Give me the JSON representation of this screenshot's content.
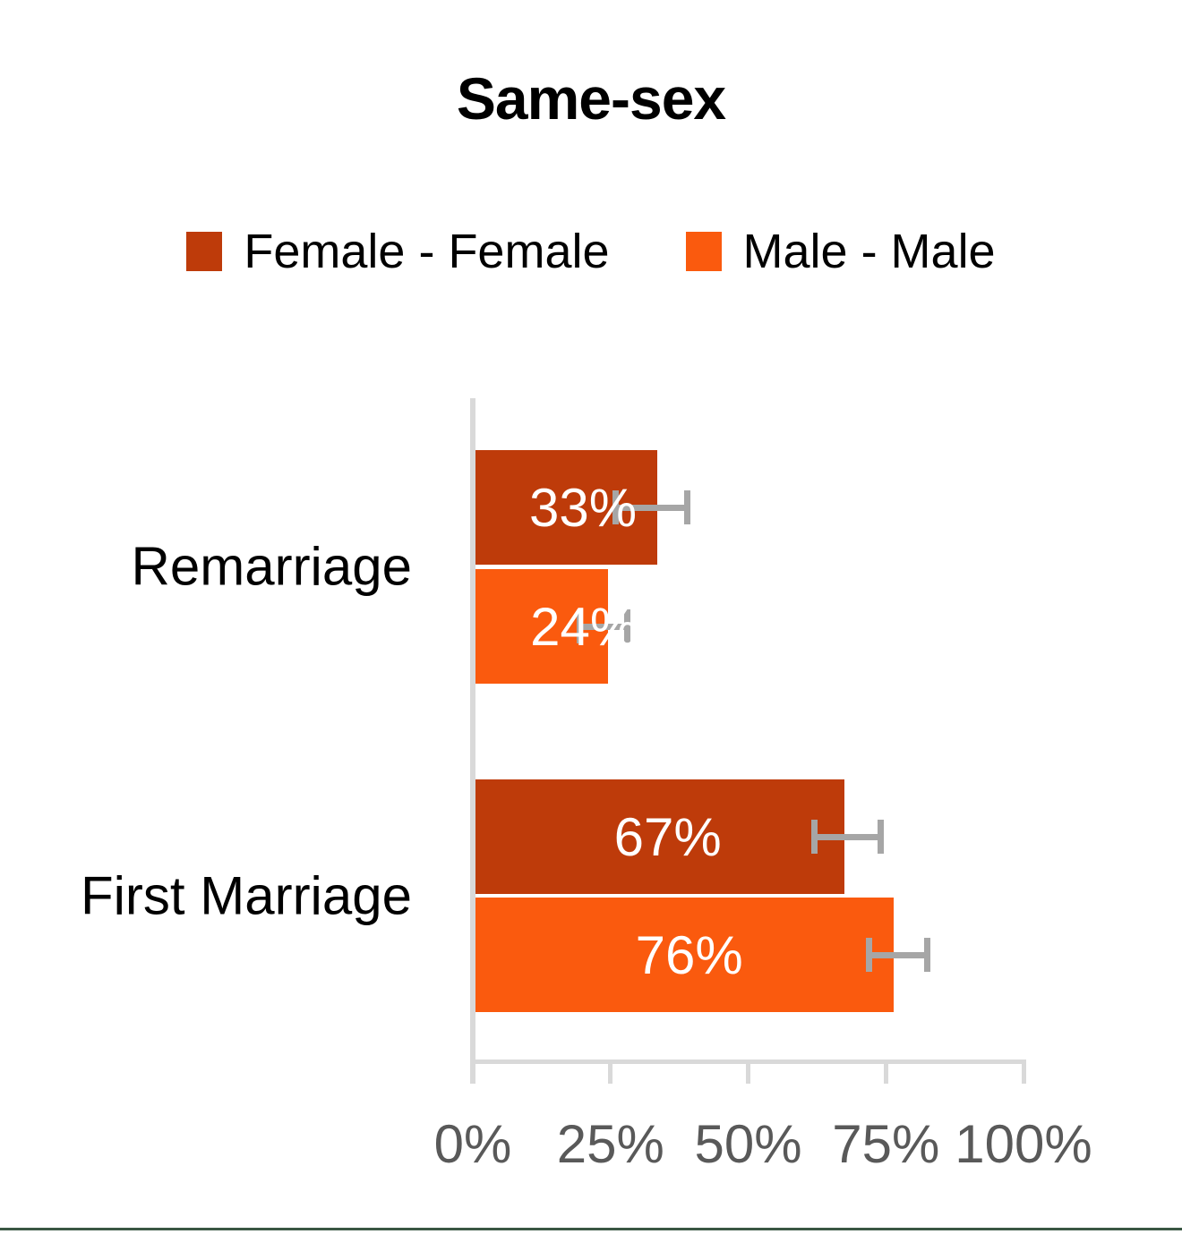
{
  "page": {
    "background": "#FFFFFF",
    "bottom_rule_color": "#3A5743"
  },
  "chart_data": {
    "type": "bar",
    "orientation": "horizontal",
    "title": "Same-sex",
    "title_color": "#000000",
    "categories": [
      "Remarriage",
      "First Marriage"
    ],
    "series": [
      {
        "name": "Female - Female",
        "color": "#BE3B0A",
        "values": [
          33,
          67
        ],
        "value_labels": [
          "33%",
          "67%"
        ],
        "errors": [
          {
            "low": 26,
            "high": 39
          },
          {
            "low": 62,
            "high": 74
          }
        ],
        "label_center_pct": [
          20,
          35.4
        ]
      },
      {
        "name": "Male - Male",
        "color": "#FA5A0E",
        "values": [
          24,
          76
        ],
        "value_labels": [
          "24%",
          "76%"
        ],
        "errors": [
          {
            "low": 19.5,
            "high": 28
          },
          {
            "low": 72,
            "high": 82.5
          }
        ],
        "label_center_pct": [
          20.2,
          39.3
        ]
      }
    ],
    "x_axis": {
      "ticks": [
        "0%",
        "25%",
        "50%",
        "75%",
        "100%"
      ],
      "range": [
        0,
        100
      ],
      "tick_color": "#595959",
      "line_color": "#D9D9D9"
    },
    "value_label_color": "#FFFFFF",
    "error_bar_color": "#A6A6A6",
    "legend_position": "top",
    "gridlines": false
  }
}
